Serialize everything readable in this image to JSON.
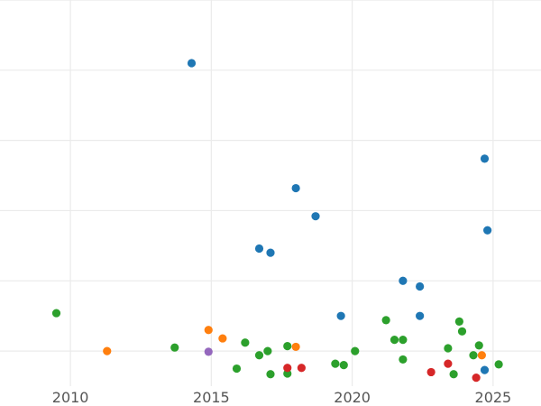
{
  "chart_data": {
    "type": "scatter",
    "title": "",
    "xlabel": "",
    "ylabel": "",
    "xlim": [
      2007.5,
      2026.7
    ],
    "ylim": [
      0,
      5.5
    ],
    "x_ticks": [
      2010,
      2015,
      2020,
      2025
    ],
    "x_tick_labels": [
      "2010",
      "2015",
      "2020",
      "2025"
    ],
    "y_gridlines": [
      0.5,
      1.5,
      2.5,
      3.5,
      4.5,
      5.5
    ],
    "grid": true,
    "legend": "none",
    "series": [
      {
        "color": "#1f77b4",
        "points": [
          {
            "x": 2014.3,
            "y": 4.6
          },
          {
            "x": 2018.0,
            "y": 2.82
          },
          {
            "x": 2018.7,
            "y": 2.42
          },
          {
            "x": 2016.7,
            "y": 1.96
          },
          {
            "x": 2017.1,
            "y": 1.9
          },
          {
            "x": 2019.6,
            "y": 1.0
          },
          {
            "x": 2021.8,
            "y": 1.5
          },
          {
            "x": 2022.4,
            "y": 1.42
          },
          {
            "x": 2022.4,
            "y": 1.0
          },
          {
            "x": 2024.7,
            "y": 3.24
          },
          {
            "x": 2024.8,
            "y": 2.22
          },
          {
            "x": 2024.7,
            "y": 0.23
          }
        ]
      },
      {
        "color": "#ff7f0e",
        "points": [
          {
            "x": 2011.3,
            "y": 0.5
          },
          {
            "x": 2014.9,
            "y": 0.8
          },
          {
            "x": 2015.4,
            "y": 0.68
          },
          {
            "x": 2018.0,
            "y": 0.56
          },
          {
            "x": 2024.6,
            "y": 0.44
          }
        ]
      },
      {
        "color": "#2ca02c",
        "points": [
          {
            "x": 2009.5,
            "y": 1.04
          },
          {
            "x": 2013.7,
            "y": 0.55
          },
          {
            "x": 2015.9,
            "y": 0.25
          },
          {
            "x": 2016.2,
            "y": 0.62
          },
          {
            "x": 2016.7,
            "y": 0.44
          },
          {
            "x": 2017.0,
            "y": 0.5
          },
          {
            "x": 2017.1,
            "y": 0.17
          },
          {
            "x": 2017.7,
            "y": 0.57
          },
          {
            "x": 2017.7,
            "y": 0.18
          },
          {
            "x": 2019.4,
            "y": 0.32
          },
          {
            "x": 2019.7,
            "y": 0.3
          },
          {
            "x": 2020.1,
            "y": 0.5
          },
          {
            "x": 2021.2,
            "y": 0.94
          },
          {
            "x": 2021.5,
            "y": 0.66
          },
          {
            "x": 2021.8,
            "y": 0.66
          },
          {
            "x": 2021.8,
            "y": 0.38
          },
          {
            "x": 2023.4,
            "y": 0.54
          },
          {
            "x": 2023.6,
            "y": 0.17
          },
          {
            "x": 2023.8,
            "y": 0.92
          },
          {
            "x": 2023.9,
            "y": 0.78
          },
          {
            "x": 2024.3,
            "y": 0.44
          },
          {
            "x": 2024.5,
            "y": 0.58
          },
          {
            "x": 2025.2,
            "y": 0.31
          }
        ]
      },
      {
        "color": "#d62728",
        "points": [
          {
            "x": 2017.7,
            "y": 0.26
          },
          {
            "x": 2018.2,
            "y": 0.26
          },
          {
            "x": 2022.8,
            "y": 0.2
          },
          {
            "x": 2023.4,
            "y": 0.32
          },
          {
            "x": 2024.4,
            "y": 0.12
          }
        ]
      },
      {
        "color": "#9467bd",
        "points": [
          {
            "x": 2014.9,
            "y": 0.49
          }
        ]
      }
    ]
  }
}
